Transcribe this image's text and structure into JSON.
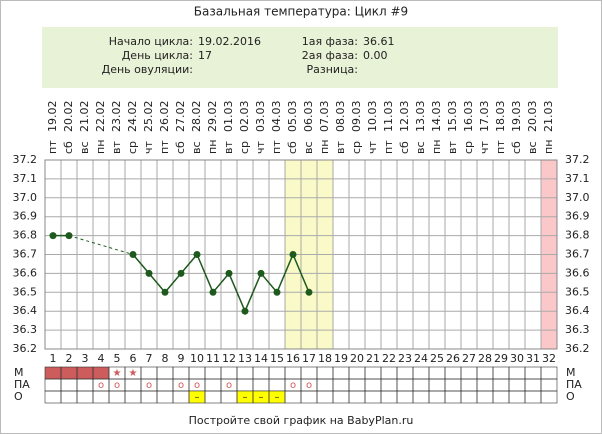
{
  "chart_data": {
    "type": "line",
    "title": "Базальная температура: Цикл #9",
    "info": {
      "left": [
        {
          "label": "Начало цикла:",
          "value": "19.02.2016"
        },
        {
          "label": "День цикла:",
          "value": "17"
        },
        {
          "label": "День овуляции:"
        }
      ],
      "right": [
        {
          "label": "1ая фаза:",
          "value": "36.61"
        },
        {
          "label": "2ая фаза:",
          "value": "0.00"
        },
        {
          "label": "Разница:"
        }
      ]
    },
    "x": [
      1,
      2,
      3,
      4,
      5,
      6,
      7,
      8,
      9,
      10,
      11,
      12,
      13,
      14,
      15,
      16,
      17,
      18,
      19,
      20,
      21,
      22,
      23,
      24,
      25,
      26,
      27,
      28,
      29,
      30,
      31,
      32
    ],
    "dates": [
      "19.02",
      "20.02",
      "21.02",
      "22.02",
      "23.02",
      "24.02",
      "25.02",
      "26.02",
      "27.02",
      "28.02",
      "29.02",
      "01.03",
      "02.03",
      "03.03",
      "04.03",
      "05.03",
      "06.03",
      "07.03",
      "08.03",
      "09.03",
      "10.03",
      "11.03",
      "12.03",
      "13.03",
      "14.03",
      "15.03",
      "16.03",
      "17.03",
      "18.03",
      "19.03",
      "20.03",
      "21.03"
    ],
    "weekdays": [
      "пт",
      "сб",
      "вс",
      "пн",
      "вт",
      "ср",
      "чт",
      "пт",
      "сб",
      "вс",
      "пн",
      "вт",
      "ср",
      "чт",
      "пт",
      "сб",
      "вс",
      "пн",
      "вт",
      "ср",
      "чт",
      "пт",
      "сб",
      "вс",
      "пн",
      "вт",
      "ср",
      "чт",
      "пт",
      "сб",
      "вс",
      "пн"
    ],
    "series": [
      {
        "color": "#1e5a1e",
        "values": [
          36.8,
          36.8,
          null,
          null,
          null,
          36.7,
          36.6,
          36.5,
          36.6,
          36.7,
          36.5,
          36.6,
          36.4,
          36.6,
          36.5,
          36.7,
          36.5,
          null,
          null,
          null,
          null,
          null,
          null,
          null,
          null,
          null,
          null,
          null,
          null,
          null,
          null,
          null
        ]
      }
    ],
    "xlim": [
      0.5,
      32.5
    ],
    "ylim": [
      36.2,
      37.2
    ],
    "yticks": [
      {
        "value": 36.2,
        "label": "36.2"
      },
      36.3,
      36.4,
      36.5,
      36.6,
      36.7,
      36.8,
      36.9,
      {
        "value": 37,
        "label": "37.0"
      },
      37.1,
      37.2
    ],
    "grid": true,
    "highlight_days": [
      16,
      17,
      18
    ],
    "highlight_color": "#fafac8",
    "forecast_days": [
      32
    ],
    "forecast_color": "#fac8c8",
    "rows": [
      {
        "label": "М",
        "filled_days": [
          1,
          2,
          3,
          4
        ],
        "fill": "#cd5c5c",
        "mark": "★",
        "mark_days": [
          5,
          6
        ],
        "mark_color": "#cd5c5c"
      },
      {
        "label": "ПА",
        "mark": "o",
        "mark_days": [
          4,
          5,
          7,
          9,
          10,
          12,
          16,
          17
        ],
        "mark_color": "#cd5c5c"
      },
      {
        "label": "О",
        "mark": "–",
        "mark_days": [
          10,
          13,
          14,
          15
        ],
        "fill": "#ffff00",
        "mark_color": "#333"
      }
    ],
    "footer": "Постройте свой график на BabyPlan.ru"
  }
}
